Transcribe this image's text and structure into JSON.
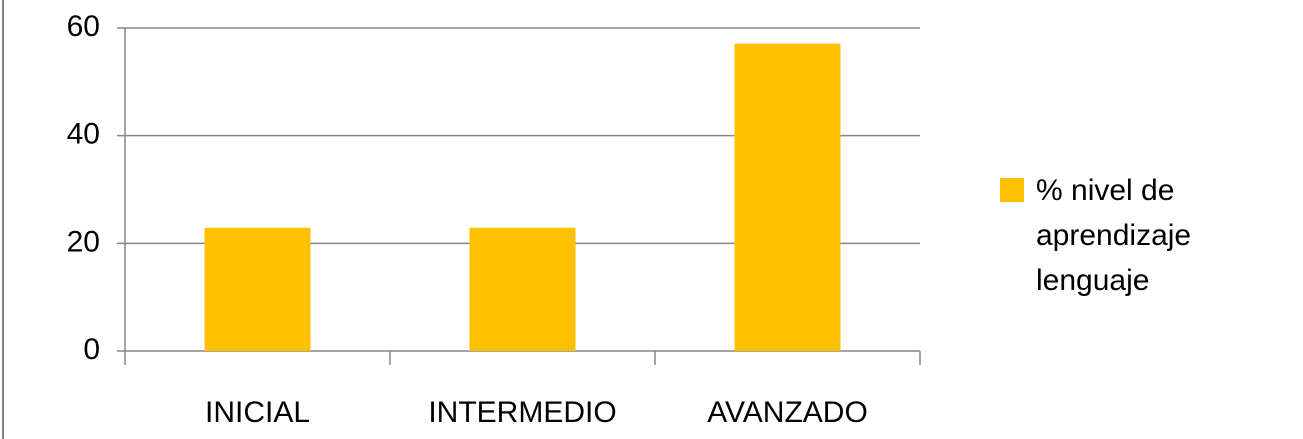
{
  "chart_data": {
    "type": "bar",
    "categories": [
      "INICIAL",
      "INTERMEDIO",
      "AVANZADO"
    ],
    "series": [
      {
        "name": "% nivel de aprendizaje lenguaje",
        "color": "#ffc000",
        "values": [
          22.9,
          22.9,
          57.1
        ]
      }
    ],
    "ylim": [
      0,
      60
    ],
    "yticks": [
      0,
      20,
      40,
      60
    ],
    "grid": true,
    "legend": "right"
  }
}
